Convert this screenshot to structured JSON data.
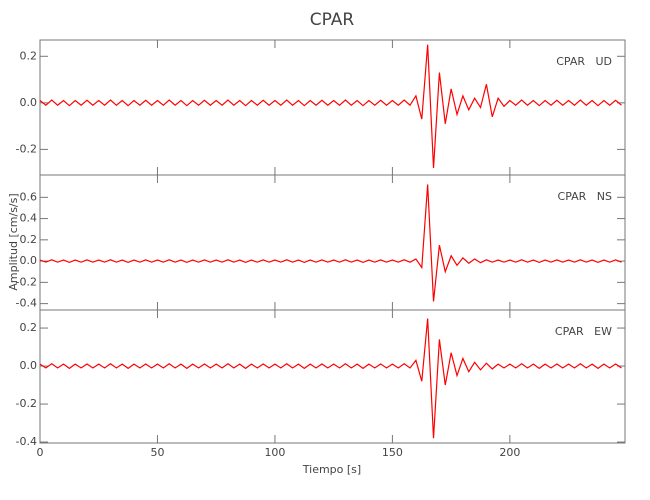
{
  "chart_data": {
    "type": "line",
    "title": "CPAR",
    "x_label": "Tiempo [s]",
    "y_label": "Amplitud [cm/s/s]",
    "xlim": [
      0,
      249
    ],
    "xticks": [
      0,
      50,
      100,
      150,
      200
    ],
    "x": [
      0,
      2.5,
      5,
      7.5,
      10,
      12.5,
      15,
      17.5,
      20,
      22.5,
      25,
      27.5,
      30,
      32.5,
      35,
      37.5,
      40,
      42.5,
      45,
      47.5,
      50,
      52.5,
      55,
      57.5,
      60,
      62.5,
      65,
      67.5,
      70,
      72.5,
      75,
      77.5,
      80,
      82.5,
      85,
      87.5,
      90,
      92.5,
      95,
      97.5,
      100,
      102.5,
      105,
      107.5,
      110,
      112.5,
      115,
      117.5,
      120,
      122.5,
      125,
      127.5,
      130,
      132.5,
      135,
      137.5,
      140,
      142.5,
      145,
      147.5,
      150,
      152.5,
      155,
      157.5,
      160,
      162.5,
      165,
      167.5,
      170,
      172.5,
      175,
      177.5,
      180,
      182.5,
      185,
      187.5,
      190,
      192.5,
      195,
      197.5,
      200,
      202.5,
      205,
      207.5,
      210,
      212.5,
      215,
      217.5,
      220,
      222.5,
      225,
      227.5,
      230,
      232.5,
      235,
      237.5,
      240,
      242.5,
      245,
      247.5
    ],
    "panels": [
      {
        "label": "CPAR   UD",
        "color": "#ff0000",
        "ylim": [
          -0.31,
          0.27
        ],
        "yticks": [
          0.2,
          {
            "value": 0,
            "label": "0.0"
          },
          -0.2
        ],
        "values": [
          0.01,
          -0.01,
          0.012,
          -0.01,
          0.01,
          -0.012,
          0.01,
          -0.01,
          0.011,
          -0.01,
          0.01,
          -0.01,
          0.012,
          -0.01,
          0.01,
          -0.012,
          0.01,
          -0.01,
          0.011,
          -0.01,
          0.01,
          -0.01,
          0.012,
          -0.01,
          0.01,
          -0.012,
          0.01,
          -0.01,
          0.011,
          -0.01,
          0.01,
          -0.01,
          0.012,
          -0.01,
          0.01,
          -0.012,
          0.01,
          -0.01,
          0.011,
          -0.01,
          0.01,
          -0.01,
          0.012,
          -0.01,
          0.01,
          -0.012,
          0.01,
          -0.01,
          0.011,
          -0.01,
          0.01,
          -0.01,
          0.012,
          -0.01,
          0.01,
          -0.012,
          0.01,
          -0.01,
          0.011,
          -0.01,
          0.01,
          -0.01,
          0.012,
          -0.01,
          0.03,
          -0.07,
          0.25,
          -0.28,
          0.13,
          -0.09,
          0.06,
          -0.05,
          0.03,
          -0.03,
          0.02,
          -0.02,
          0.08,
          -0.06,
          0.02,
          -0.015,
          0.01,
          -0.01,
          0.012,
          -0.01,
          0.01,
          -0.012,
          0.01,
          -0.01,
          0.011,
          -0.01,
          0.01,
          -0.01,
          0.012,
          -0.01,
          0.01,
          -0.012,
          0.01,
          -0.01,
          0.011,
          -0.01
        ]
      },
      {
        "label": "CPAR   NS",
        "color": "#ff0000",
        "ylim": [
          -0.46,
          0.81
        ],
        "yticks": [
          0.6,
          0.4,
          0.2,
          {
            "value": 0,
            "label": "0.0"
          },
          -0.2,
          -0.4
        ],
        "values": [
          0.01,
          -0.01,
          0.012,
          -0.01,
          0.01,
          -0.012,
          0.01,
          -0.01,
          0.011,
          -0.01,
          0.01,
          -0.01,
          0.012,
          -0.01,
          0.01,
          -0.012,
          0.01,
          -0.01,
          0.011,
          -0.01,
          0.01,
          -0.01,
          0.012,
          -0.01,
          0.01,
          -0.012,
          0.01,
          -0.01,
          0.011,
          -0.01,
          0.01,
          -0.01,
          0.012,
          -0.01,
          0.01,
          -0.012,
          0.01,
          -0.01,
          0.011,
          -0.01,
          0.01,
          -0.01,
          0.012,
          -0.01,
          0.01,
          -0.012,
          0.01,
          -0.01,
          0.011,
          -0.01,
          0.01,
          -0.01,
          0.012,
          -0.01,
          0.01,
          -0.012,
          0.01,
          -0.01,
          0.011,
          -0.01,
          0.01,
          -0.01,
          0.012,
          -0.01,
          0.02,
          -0.06,
          0.72,
          -0.38,
          0.15,
          -0.1,
          0.05,
          -0.04,
          0.03,
          -0.02,
          0.02,
          -0.015,
          0.012,
          -0.01,
          0.01,
          -0.01,
          0.01,
          -0.01,
          0.012,
          -0.01,
          0.01,
          -0.012,
          0.01,
          -0.01,
          0.011,
          -0.01,
          0.01,
          -0.01,
          0.012,
          -0.01,
          0.01,
          -0.012,
          0.01,
          -0.01,
          0.011,
          -0.01
        ]
      },
      {
        "label": "CPAR   EW",
        "color": "#ff0000",
        "ylim": [
          -0.405,
          0.295
        ],
        "yticks": [
          0.2,
          {
            "value": 0,
            "label": "0.0"
          },
          -0.2,
          -0.4
        ],
        "values": [
          0.01,
          -0.01,
          0.012,
          -0.01,
          0.01,
          -0.012,
          0.01,
          -0.01,
          0.011,
          -0.01,
          0.01,
          -0.01,
          0.012,
          -0.01,
          0.01,
          -0.012,
          0.01,
          -0.01,
          0.011,
          -0.01,
          0.01,
          -0.01,
          0.012,
          -0.01,
          0.01,
          -0.012,
          0.01,
          -0.01,
          0.011,
          -0.01,
          0.01,
          -0.01,
          0.012,
          -0.01,
          0.01,
          -0.012,
          0.01,
          -0.01,
          0.011,
          -0.01,
          0.01,
          -0.01,
          0.012,
          -0.01,
          0.01,
          -0.012,
          0.01,
          -0.01,
          0.011,
          -0.01,
          0.01,
          -0.01,
          0.012,
          -0.01,
          0.01,
          -0.012,
          0.01,
          -0.01,
          0.011,
          -0.01,
          0.01,
          -0.01,
          0.012,
          -0.01,
          0.03,
          -0.08,
          0.25,
          -0.38,
          0.14,
          -0.1,
          0.07,
          -0.05,
          0.04,
          -0.03,
          0.02,
          -0.02,
          0.015,
          -0.015,
          0.01,
          -0.01,
          0.01,
          -0.01,
          0.012,
          -0.01,
          0.01,
          -0.012,
          0.01,
          -0.01,
          0.011,
          -0.01,
          0.01,
          -0.01,
          0.012,
          -0.01,
          0.01,
          -0.012,
          0.01,
          -0.01,
          0.011,
          -0.01
        ]
      }
    ]
  }
}
